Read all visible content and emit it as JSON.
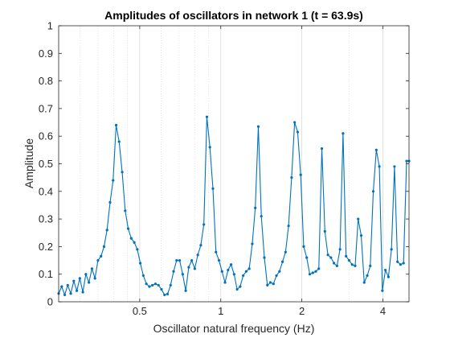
{
  "chart_data": {
    "type": "line",
    "title": "Amplitudes of oscillators in network 1 (t = 63.9s)",
    "xlabel": "Oscillator natural frequency (Hz)",
    "ylabel": "Amplitude",
    "x_scale": "log2",
    "xlim": [
      0.25,
      5.0
    ],
    "ylim": [
      0,
      1
    ],
    "grid": "x-major-minor",
    "color": "#0072bd",
    "x_ticks": [
      {
        "value": 0.5,
        "label": "0.5"
      },
      {
        "value": 1,
        "label": "1"
      },
      {
        "value": 2,
        "label": "2"
      },
      {
        "value": 4,
        "label": "4"
      }
    ],
    "y_ticks": [
      {
        "value": 0,
        "label": "0"
      },
      {
        "value": 0.1,
        "label": "0.1"
      },
      {
        "value": 0.2,
        "label": "0.2"
      },
      {
        "value": 0.3,
        "label": "0.3"
      },
      {
        "value": 0.4,
        "label": "0.4"
      },
      {
        "value": 0.5,
        "label": "0.5"
      },
      {
        "value": 0.6,
        "label": "0.6"
      },
      {
        "value": 0.7,
        "label": "0.7"
      },
      {
        "value": 0.8,
        "label": "0.8"
      },
      {
        "value": 0.9,
        "label": "0.9"
      },
      {
        "value": 1,
        "label": "1"
      }
    ],
    "x_minor_grid": [
      0.3,
      0.35,
      0.4,
      0.45,
      0.6,
      0.7,
      0.8,
      0.9,
      3,
      5
    ],
    "series": [
      {
        "x": [
          0.25,
          0.2566,
          0.2633,
          0.2702,
          0.2773,
          0.2845,
          0.292,
          0.2996,
          0.3075,
          0.3155,
          0.3238,
          0.3323,
          0.341,
          0.3499,
          0.3591,
          0.3685,
          0.3781,
          0.388,
          0.3982,
          0.4086,
          0.4193,
          0.4303,
          0.4416,
          0.4531,
          0.465,
          0.4772,
          0.4897,
          0.5025,
          0.5157,
          0.5292,
          0.5431,
          0.5573,
          0.5719,
          0.5869,
          0.6023,
          0.6181,
          0.6343,
          0.6509,
          0.668,
          0.6855,
          0.7034,
          0.7219,
          0.7408,
          0.7602,
          0.7801,
          0.8006,
          0.8215,
          0.8431,
          0.8652,
          0.8878,
          0.9111,
          0.935,
          0.9595,
          0.9846,
          1.0104,
          1.0369,
          1.0641,
          1.092,
          1.1206,
          1.15,
          1.1801,
          1.211,
          1.2428,
          1.2753,
          1.3088,
          1.3431,
          1.3783,
          1.4144,
          1.4515,
          1.4895,
          1.5286,
          1.5686,
          1.6097,
          1.6519,
          1.6952,
          1.7397,
          1.7853,
          1.8321,
          1.8801,
          1.9294,
          1.9799,
          2.0318,
          2.0851,
          2.1397,
          2.1958,
          2.2534,
          2.3124,
          2.373,
          2.4352,
          2.4991,
          2.5646,
          2.6318,
          2.7008,
          2.7716,
          2.8442,
          2.9188,
          2.9953,
          3.0738,
          3.1544,
          3.2371,
          3.3219,
          3.409,
          3.4983,
          3.59,
          3.6841,
          3.7807,
          3.8798,
          3.9815,
          4.0859,
          4.193,
          4.3029,
          4.4157,
          4.5314,
          4.6502,
          4.7721,
          4.8972,
          5.0
        ],
        "y": [
          0.03,
          0.055,
          0.025,
          0.06,
          0.03,
          0.075,
          0.04,
          0.085,
          0.035,
          0.1,
          0.07,
          0.12,
          0.085,
          0.15,
          0.165,
          0.2,
          0.26,
          0.36,
          0.44,
          0.64,
          0.58,
          0.47,
          0.33,
          0.265,
          0.23,
          0.215,
          0.19,
          0.14,
          0.095,
          0.065,
          0.055,
          0.06,
          0.065,
          0.06,
          0.045,
          0.025,
          0.028,
          0.06,
          0.11,
          0.15,
          0.15,
          0.1,
          0.04,
          0.125,
          0.15,
          0.12,
          0.17,
          0.205,
          0.28,
          0.67,
          0.56,
          0.41,
          0.18,
          0.15,
          0.11,
          0.07,
          0.115,
          0.135,
          0.1,
          0.045,
          0.055,
          0.095,
          0.11,
          0.12,
          0.21,
          0.34,
          0.635,
          0.31,
          0.16,
          0.06,
          0.07,
          0.065,
          0.095,
          0.11,
          0.145,
          0.18,
          0.275,
          0.45,
          0.65,
          0.615,
          0.46,
          0.2,
          0.16,
          0.1,
          0.105,
          0.11,
          0.12,
          0.555,
          0.255,
          0.17,
          0.16,
          0.14,
          0.13,
          0.19,
          0.61,
          0.165,
          0.15,
          0.135,
          0.13,
          0.3,
          0.24,
          0.07,
          0.095,
          0.13,
          0.4,
          0.55,
          0.49,
          0.04,
          0.115,
          0.09,
          0.19,
          0.49,
          0.145,
          0.135,
          0.14,
          0.51,
          0.51
        ]
      }
    ]
  }
}
